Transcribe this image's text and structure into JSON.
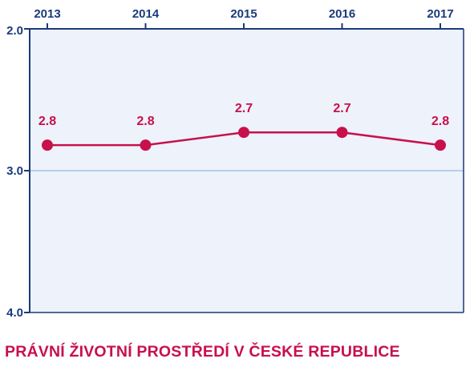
{
  "chart_data": {
    "type": "line",
    "title": "PRÁVNÍ ŽIVOTNÍ PROSTŘEDÍ V ČESKÉ REPUBLICE",
    "x": [
      "2013",
      "2014",
      "2015",
      "2016",
      "2017"
    ],
    "series": [
      {
        "values": [
          2.82,
          2.82,
          2.73,
          2.73,
          2.82
        ],
        "labels": [
          "2.8",
          "2.8",
          "2.7",
          "2.7",
          "2.8"
        ]
      }
    ],
    "y_ticks": [
      "2.0",
      "3.0",
      "4.0"
    ],
    "ylim": [
      2.0,
      4.0
    ],
    "y_inverted": true,
    "x_axis_position": "top",
    "grid": "horizontal",
    "colors": {
      "line": "#c8104b",
      "plot_background": "#edf2fb",
      "axis": "#1b3a7a",
      "gridline": "#a9c2e6"
    }
  }
}
